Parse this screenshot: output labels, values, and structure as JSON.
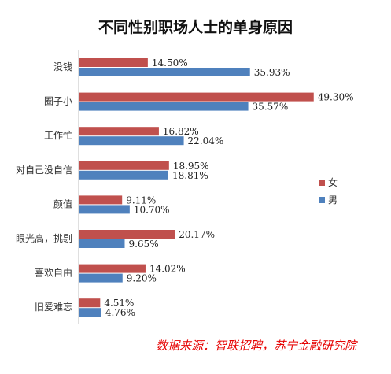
{
  "chart_data": {
    "type": "bar",
    "orientation": "horizontal",
    "title": "不同性别职场人士的单身原因",
    "categories": [
      "没钱",
      "圈子小",
      "工作忙",
      "对自己没自信",
      "颜值",
      "眼光高，挑剔",
      "喜欢自由",
      "旧爱难忘"
    ],
    "series": [
      {
        "name": "女",
        "color": "#c0504d",
        "values": [
          14.5,
          49.3,
          16.82,
          18.95,
          9.11,
          20.17,
          14.02,
          4.51
        ],
        "labels": [
          "14.50%",
          "49.30%",
          "16.82%",
          "18.95%",
          "9.11%",
          "20.17%",
          "14.02%",
          "4.51%"
        ]
      },
      {
        "name": "男",
        "color": "#4f81bd",
        "values": [
          35.93,
          35.57,
          22.04,
          18.81,
          10.7,
          9.65,
          9.2,
          4.76
        ],
        "labels": [
          "35.93%",
          "35.57%",
          "22.04%",
          "18.81%",
          "10.70%",
          "9.65%",
          "9.20%",
          "4.76%"
        ]
      }
    ],
    "xlim": [
      0,
      60
    ],
    "grid": false,
    "legend_position": "right"
  },
  "source_note": "数据来源：智联招聘，苏宁金融研究院"
}
